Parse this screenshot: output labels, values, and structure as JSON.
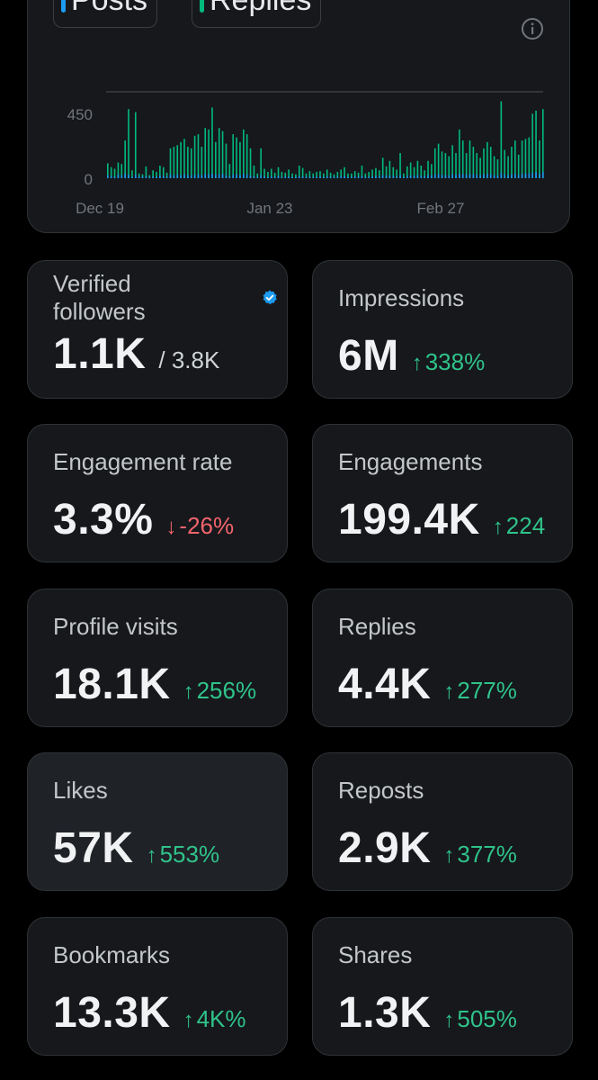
{
  "legend": {
    "posts_label": "Posts",
    "replies_label": "Replies",
    "posts_color": "#1d9bf0",
    "replies_color": "#00ba7c"
  },
  "chart_data": {
    "type": "bar",
    "series": [
      {
        "name": "Posts",
        "color": "#1d9bf0"
      },
      {
        "name": "Replies",
        "color": "#00ba7c"
      }
    ],
    "y_ticks": [
      "450",
      "0"
    ],
    "x_ticks": [
      "Dec 19",
      "Jan 23",
      "Feb 27"
    ],
    "ylim": [
      0,
      550
    ],
    "replies_values": [
      95,
      70,
      60,
      100,
      90,
      240,
      440,
      50,
      420,
      30,
      25,
      75,
      20,
      50,
      40,
      80,
      70,
      35,
      190,
      200,
      210,
      230,
      250,
      200,
      190,
      270,
      280,
      200,
      320,
      310,
      450,
      230,
      320,
      300,
      220,
      90,
      280,
      260,
      230,
      310,
      280,
      190,
      80,
      30,
      190,
      60,
      40,
      60,
      35,
      70,
      40,
      35,
      55,
      30,
      25,
      80,
      65,
      30,
      45,
      30,
      40,
      45,
      30,
      55,
      35,
      25,
      40,
      55,
      70,
      30,
      30,
      45,
      35,
      80,
      30,
      40,
      55,
      65,
      50,
      130,
      75,
      110,
      70,
      55,
      160,
      30,
      75,
      100,
      70,
      110,
      80,
      50,
      110,
      90,
      190,
      220,
      170,
      160,
      140,
      210,
      160,
      310,
      240,
      160,
      240,
      200,
      160,
      130,
      190,
      230,
      200,
      140,
      120,
      490,
      180,
      140,
      200,
      240,
      150,
      240,
      250,
      260,
      410,
      430,
      240,
      440
    ],
    "posts_values": [
      20,
      15,
      10,
      25,
      18,
      30,
      22,
      8,
      25,
      12,
      10,
      15,
      8,
      12,
      10,
      18,
      15,
      10,
      25,
      20,
      22,
      18,
      25,
      20,
      18,
      22,
      25,
      20,
      28,
      25,
      30,
      22,
      25,
      28,
      20,
      12,
      22,
      25,
      20,
      28,
      22,
      18,
      12,
      8,
      20,
      10,
      8,
      12,
      10,
      15,
      8,
      10,
      12,
      8,
      8,
      15,
      12,
      8,
      10,
      8,
      10,
      12,
      8,
      12,
      10,
      8,
      10,
      12,
      15,
      8,
      8,
      12,
      10,
      15,
      8,
      10,
      12,
      15,
      12,
      20,
      15,
      18,
      15,
      12,
      22,
      8,
      15,
      18,
      15,
      20,
      15,
      12,
      20,
      18,
      25,
      28,
      22,
      20,
      18,
      25,
      22,
      30,
      28,
      22,
      28,
      25,
      22,
      20,
      25,
      28,
      25,
      20,
      18,
      35,
      22,
      20,
      25,
      28,
      20,
      28,
      30,
      30,
      35,
      38,
      28,
      40
    ]
  },
  "cards": [
    {
      "label_line1": "Verified",
      "label_line2": "followers",
      "value": "1.1K",
      "sub": "/ 3.8K"
    },
    {
      "label": "Impressions",
      "value": "6M",
      "change": "338%",
      "arrow": "↑"
    },
    {
      "label": "Engagement rate",
      "value": "3.3%",
      "change": "-26%",
      "arrow": "↓"
    },
    {
      "label": "Engagements",
      "value": "199.4K",
      "change": "224",
      "arrow": "↑"
    },
    {
      "label": "Profile visits",
      "value": "18.1K",
      "change": "256%",
      "arrow": "↑"
    },
    {
      "label": "Replies",
      "value": "4.4K",
      "change": "277%",
      "arrow": "↑"
    },
    {
      "label": "Likes",
      "value": "57K",
      "change": "553%",
      "arrow": "↑"
    },
    {
      "label": "Reposts",
      "value": "2.9K",
      "change": "377%",
      "arrow": "↑"
    },
    {
      "label": "Bookmarks",
      "value": "13.3K",
      "change": "4K%",
      "arrow": "↑"
    },
    {
      "label": "Shares",
      "value": "1.3K",
      "change": "505%",
      "arrow": "↑"
    }
  ]
}
